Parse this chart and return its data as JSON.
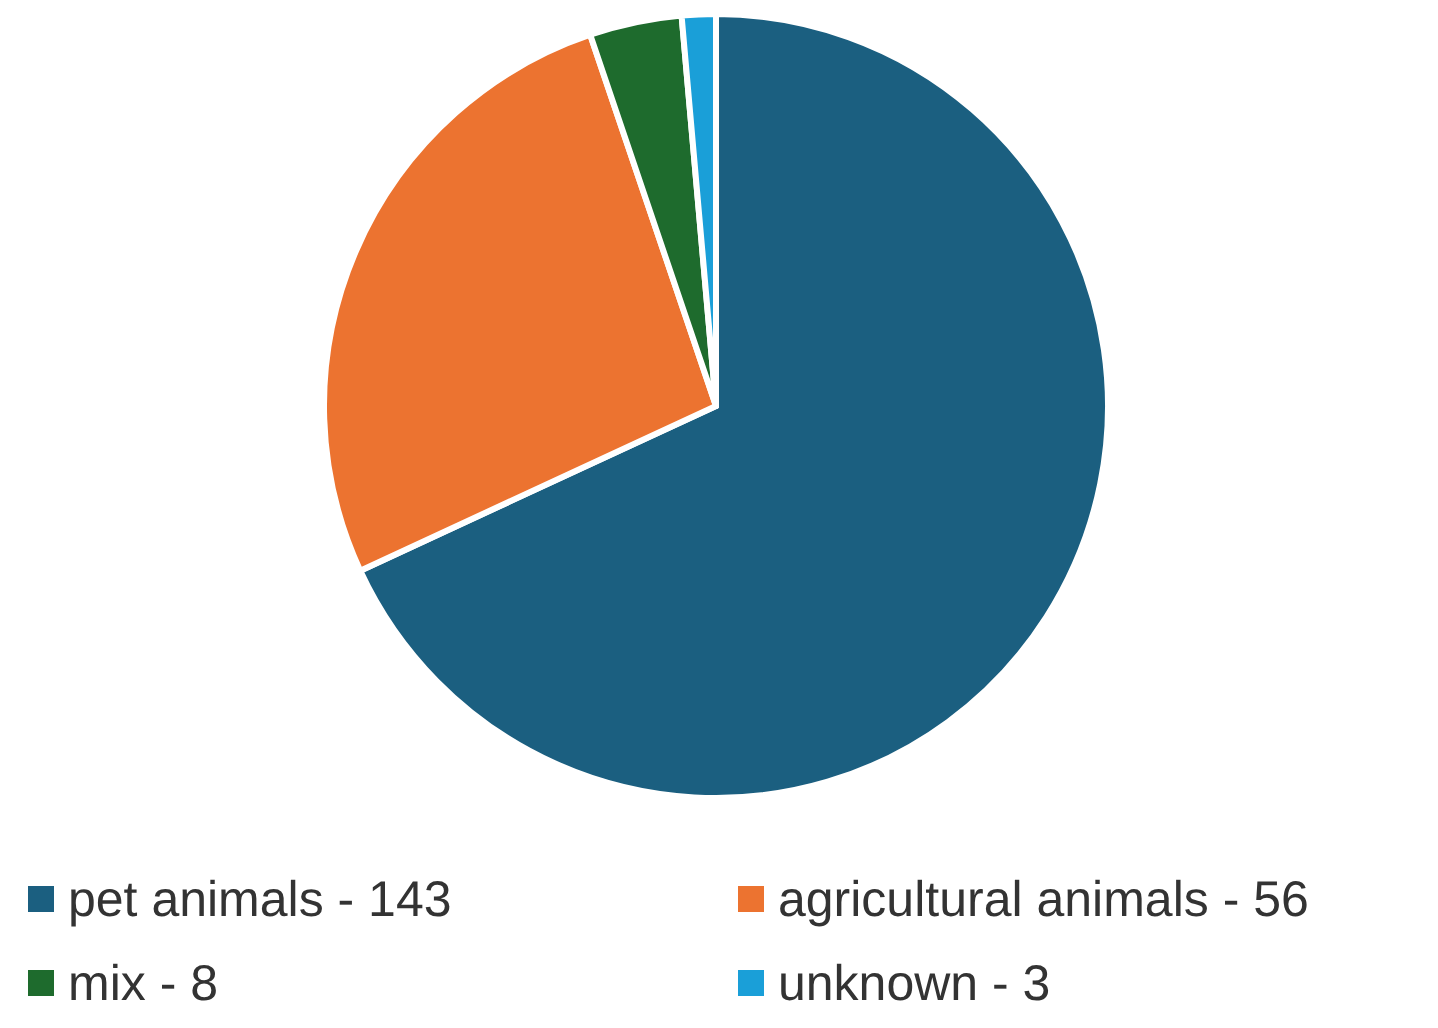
{
  "chart_data": {
    "type": "pie",
    "categories": [
      "pet animals - 143",
      "agricultural animals - 56",
      "mix - 8",
      "unknown - 3"
    ],
    "values": [
      68.1,
      26.7,
      3.8,
      1.4
    ],
    "colors": [
      "#1b5f80",
      "#ec7330",
      "#1e6b2d",
      "#1a9fd8"
    ],
    "legend": "bottom"
  }
}
